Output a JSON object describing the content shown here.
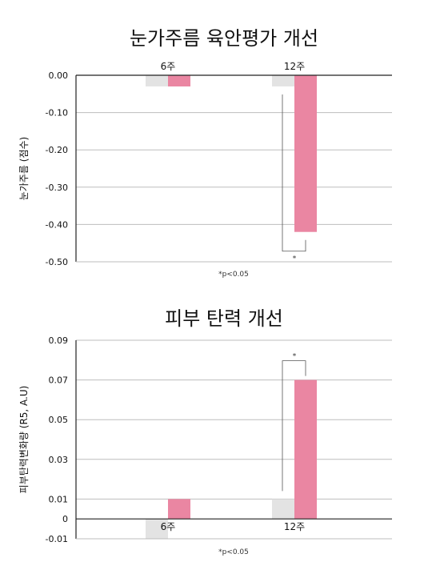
{
  "chart_data": [
    {
      "type": "bar",
      "title": "눈가주름 육안평가 개선",
      "ylabel": "눈가주름 (점수)",
      "xlabel": "",
      "categories": [
        "6주",
        "12주"
      ],
      "category_position": "top",
      "series": [
        {
          "values": [
            -0.03,
            -0.03
          ],
          "color": "#e3e3e3"
        },
        {
          "values": [
            -0.03,
            -0.42
          ],
          "color": "#ea86a2"
        }
      ],
      "ylim": [
        -0.5,
        0
      ],
      "yticks": [
        "0.00",
        "-0.10",
        "-0.20",
        "-0.30",
        "-0.40",
        "-0.50"
      ],
      "grid": true,
      "significance": [
        {
          "category": "12주",
          "label": "*",
          "position": "below"
        }
      ],
      "footnote": "*p<0.05"
    },
    {
      "type": "bar",
      "title": "피부 탄력 개선",
      "ylabel": "피부탄력변화량 (R5, A.U)",
      "xlabel": "",
      "categories": [
        "6주",
        "12주"
      ],
      "category_position": "zero-line",
      "series": [
        {
          "values": [
            -0.01,
            0.01
          ],
          "color": "#e3e3e3"
        },
        {
          "values": [
            0.01,
            0.07
          ],
          "color": "#ea86a2"
        }
      ],
      "ylim": [
        -0.01,
        0.09
      ],
      "yticks": [
        "0.09",
        "0.07",
        "0.05",
        "0.03",
        "0.01",
        "0",
        "-0.01"
      ],
      "grid": true,
      "significance": [
        {
          "category": "12주",
          "label": "*",
          "position": "above"
        }
      ],
      "footnote": "*p<0.05"
    }
  ]
}
